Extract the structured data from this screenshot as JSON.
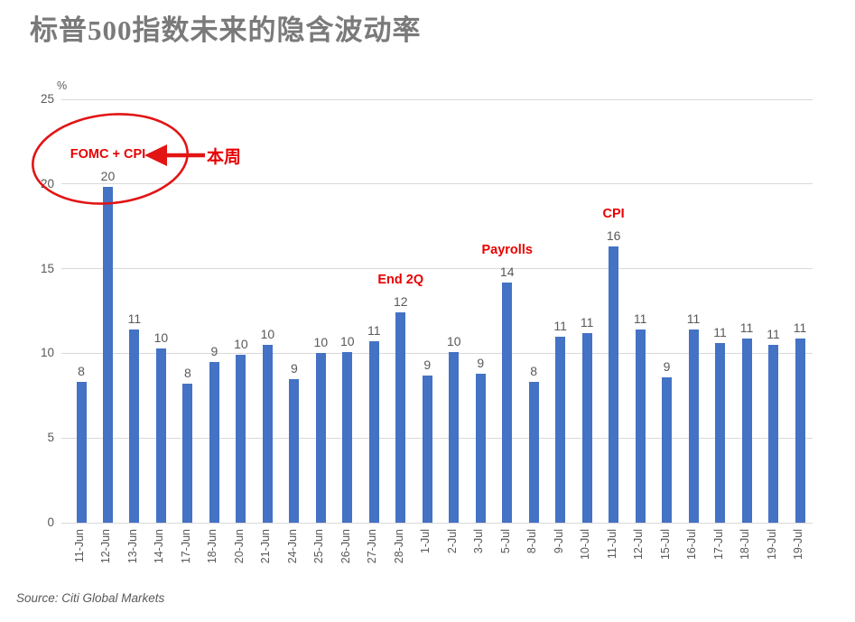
{
  "title": "标普500指数未来的隐含波动率",
  "source": "Source: Citi Global Markets",
  "colors": {
    "bar": "#4472c4",
    "annotation_red": "#e80000",
    "label_gray": "#595959",
    "title_gray": "#7a7a7a",
    "gridline": "#d9d9d9"
  },
  "chart_data": {
    "type": "bar",
    "title": "标普500指数未来的隐含波动率",
    "unit_label": "%",
    "categories": [
      "11-Jun",
      "12-Jun",
      "13-Jun",
      "14-Jun",
      "17-Jun",
      "18-Jun",
      "20-Jun",
      "21-Jun",
      "24-Jun",
      "25-Jun",
      "26-Jun",
      "27-Jun",
      "28-Jun",
      "1-Jul",
      "2-Jul",
      "3-Jul",
      "5-Jul",
      "8-Jul",
      "9-Jul",
      "10-Jul",
      "11-Jul",
      "12-Jul",
      "15-Jul",
      "16-Jul",
      "17-Jul",
      "18-Jul",
      "19-Jul",
      "19-Jul"
    ],
    "values": [
      8,
      20,
      11,
      10,
      8,
      9,
      10,
      10,
      9,
      10,
      10,
      11,
      12,
      9,
      10,
      9,
      14,
      8,
      11,
      11,
      16,
      11,
      9,
      11,
      11,
      11,
      11,
      11
    ],
    "values_precise": [
      8.3,
      19.85,
      11.4,
      10.3,
      8.2,
      9.5,
      9.9,
      10.5,
      8.5,
      10.0,
      10.1,
      10.7,
      12.4,
      8.7,
      10.1,
      8.8,
      14.2,
      8.3,
      11.0,
      11.2,
      16.3,
      11.4,
      8.6,
      11.4,
      10.6,
      10.9,
      10.5,
      10.85
    ],
    "ylim": [
      0,
      25
    ],
    "yticks": [
      0,
      5,
      10,
      15,
      20,
      25
    ],
    "grid": true,
    "legend": "none",
    "bar_color": "#4472c4",
    "annotations": [
      {
        "text": "FOMC + CPI",
        "bar_index": 1
      },
      {
        "text": "End 2Q",
        "bar_index": 12
      },
      {
        "text": "Payrolls",
        "bar_index": 16
      },
      {
        "text": "CPI",
        "bar_index": 20
      }
    ],
    "callout": {
      "text": "本周",
      "target": "12-Jun"
    }
  }
}
